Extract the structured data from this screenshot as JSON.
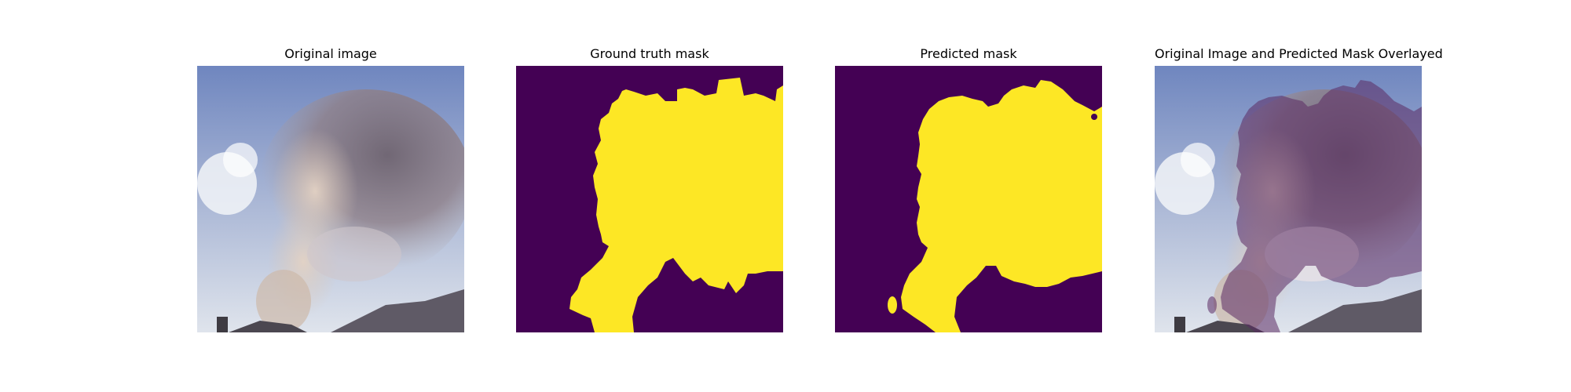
{
  "figure": {
    "panels": [
      {
        "title": "Original image"
      },
      {
        "title": "Ground truth mask"
      },
      {
        "title": "Predicted mask"
      },
      {
        "title": "Original Image and Predicted Mask Overlayed"
      }
    ]
  },
  "colors": {
    "mask_background": "#440154",
    "mask_foreground": "#fde725",
    "sky_top": "#6f86bf",
    "sky_bottom": "#dfe4ec",
    "smoke_light": "#d7c6b8",
    "smoke_dark": "#6b5f6a",
    "overlay_tint": "#5b2a63"
  }
}
